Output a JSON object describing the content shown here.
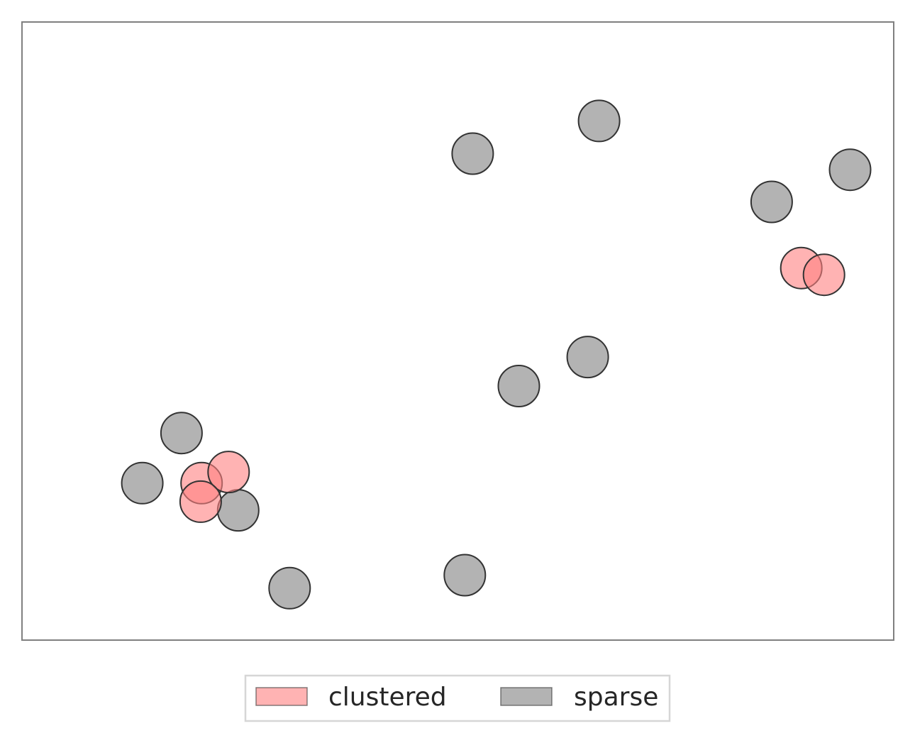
{
  "chart_data": {
    "type": "scatter",
    "title": "",
    "xlabel": "",
    "ylabel": "",
    "xlim": [
      0,
      100
    ],
    "ylim": [
      0,
      100
    ],
    "grid": false,
    "axis_ticks": false,
    "legend": {
      "placement": "bottom-center",
      "entries": [
        {
          "name": "clustered",
          "color": "#ff8080"
        },
        {
          "name": "sparse",
          "color": "#808080"
        }
      ]
    },
    "series": [
      {
        "name": "clustered",
        "color": "#ff8080",
        "alpha": 0.6,
        "edgecolor": "#333333",
        "points": [
          {
            "x": 20.6,
            "y": 25.4
          },
          {
            "x": 23.7,
            "y": 27.2
          },
          {
            "x": 20.5,
            "y": 22.4
          },
          {
            "x": 89.4,
            "y": 60.2
          },
          {
            "x": 92.0,
            "y": 59.1
          }
        ]
      },
      {
        "name": "sparse",
        "color": "#808080",
        "alpha": 0.6,
        "edgecolor": "#333333",
        "points": [
          {
            "x": 13.8,
            "y": 25.4
          },
          {
            "x": 18.3,
            "y": 33.5
          },
          {
            "x": 24.8,
            "y": 21.0
          },
          {
            "x": 30.7,
            "y": 8.4
          },
          {
            "x": 50.8,
            "y": 10.5
          },
          {
            "x": 57.0,
            "y": 41.1
          },
          {
            "x": 64.9,
            "y": 45.8
          },
          {
            "x": 51.7,
            "y": 78.7
          },
          {
            "x": 66.2,
            "y": 84.0
          },
          {
            "x": 86.0,
            "y": 70.9
          },
          {
            "x": 95.0,
            "y": 76.1
          }
        ]
      }
    ]
  }
}
